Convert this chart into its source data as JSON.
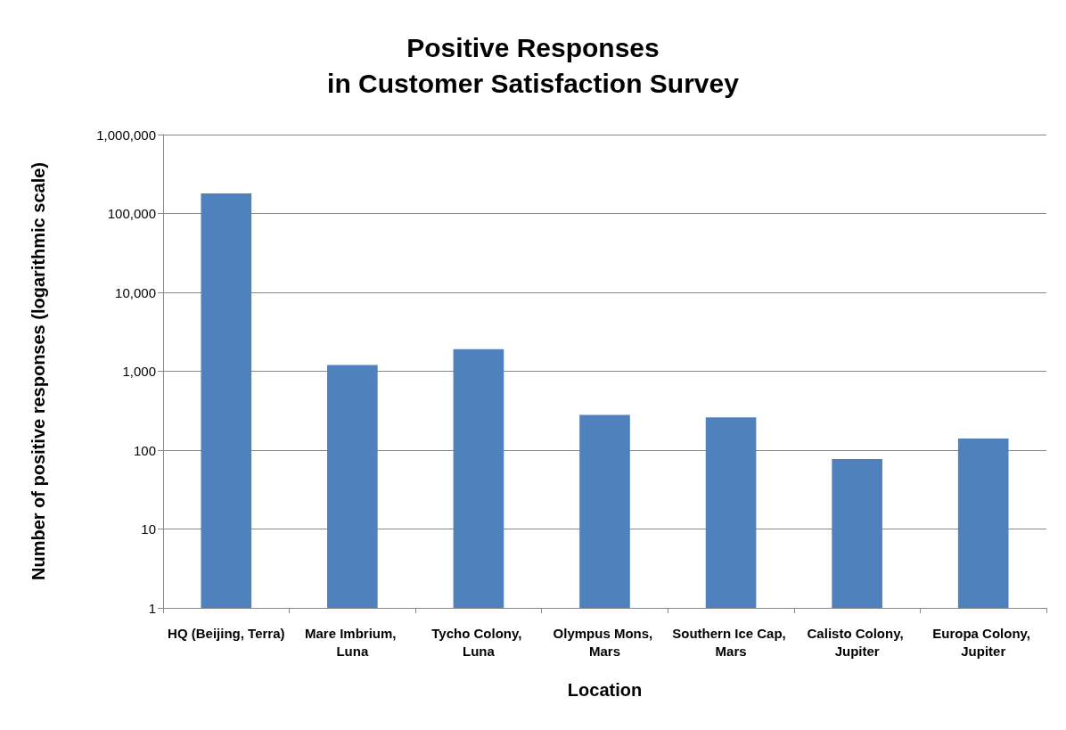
{
  "chart_data": {
    "type": "bar",
    "title": "Positive Responses\nin Customer Satisfaction Survey",
    "xlabel": "Location",
    "ylabel": "Number of positive responses (logarithmic scale)",
    "categories": [
      "HQ (Beijing, Terra)",
      "Mare Imbrium, Luna",
      "Tycho Colony, Luna",
      "Olympus Mons, Mars",
      "Southern Ice Cap, Mars",
      "Calisto Colony, Jupiter",
      "Europa Colony, Jupiter"
    ],
    "values": [
      180000,
      1200,
      1900,
      280,
      260,
      77,
      140
    ],
    "color": "#4f81bd",
    "log": "y",
    "ylim": [
      1,
      1000000
    ],
    "yticks": [
      1,
      10,
      100,
      {
        "value": 1000,
        "label": "1,000"
      },
      {
        "value": 10000,
        "label": "10,000"
      },
      {
        "value": 100000,
        "label": "100,000"
      },
      {
        "value": 1000000,
        "label": "1,000,000"
      }
    ],
    "grid": "y"
  }
}
